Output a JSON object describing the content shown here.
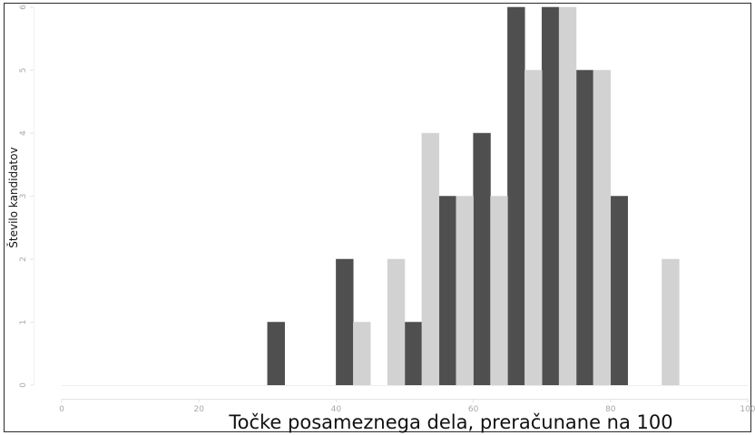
{
  "chart_data": {
    "type": "bar",
    "title": "",
    "xlabel": "Točke posameznega dela, preračunane na 100",
    "ylabel": "Število kandidatov",
    "xlim": [
      0,
      100
    ],
    "ylim": [
      0,
      6
    ],
    "x_ticks": [
      "0",
      "20",
      "40",
      "60",
      "80",
      "100"
    ],
    "y_ticks": [
      "0",
      "1",
      "2",
      "3",
      "4",
      "5",
      "6"
    ],
    "bin_width": 2.5,
    "grid": false,
    "legend": "none",
    "series": [
      {
        "color": "#4f4f4f",
        "bins": [
          {
            "x0": 30,
            "x1": 32.5,
            "value": 1
          },
          {
            "x0": 40,
            "x1": 42.5,
            "value": 2
          },
          {
            "x0": 50,
            "x1": 52.5,
            "value": 1
          },
          {
            "x0": 55,
            "x1": 57.5,
            "value": 3
          },
          {
            "x0": 60,
            "x1": 62.5,
            "value": 4
          },
          {
            "x0": 65,
            "x1": 67.5,
            "value": 6
          },
          {
            "x0": 70,
            "x1": 72.5,
            "value": 6
          },
          {
            "x0": 75,
            "x1": 77.5,
            "value": 5
          },
          {
            "x0": 80,
            "x1": 82.5,
            "value": 3
          }
        ]
      },
      {
        "color": "#d2d2d2",
        "bins": [
          {
            "x0": 42.5,
            "x1": 45,
            "value": 1
          },
          {
            "x0": 47.5,
            "x1": 50,
            "value": 2
          },
          {
            "x0": 52.5,
            "x1": 55,
            "value": 4
          },
          {
            "x0": 57.5,
            "x1": 60,
            "value": 3
          },
          {
            "x0": 62.5,
            "x1": 65,
            "value": 3
          },
          {
            "x0": 67.5,
            "x1": 70,
            "value": 5
          },
          {
            "x0": 72.5,
            "x1": 75,
            "value": 6
          },
          {
            "x0": 77.5,
            "x1": 80,
            "value": 5
          },
          {
            "x0": 87.5,
            "x1": 90,
            "value": 2
          }
        ]
      }
    ]
  }
}
